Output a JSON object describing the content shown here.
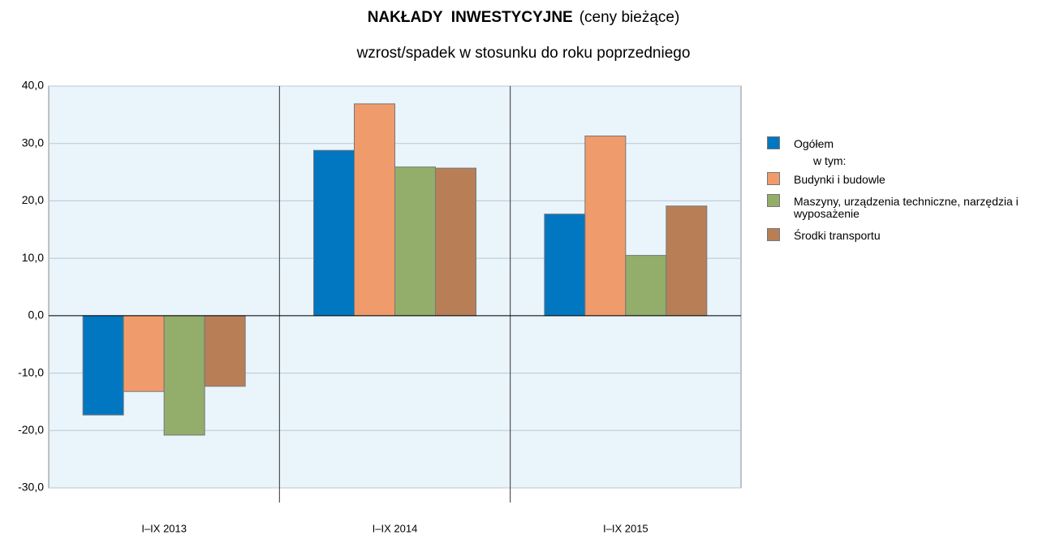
{
  "chart_data": {
    "type": "bar",
    "title": "NAKŁADY  INWESTYCYJNE",
    "title_note": "(ceny bieżące)",
    "subtitle": "wzrost/spadek w stosunku do roku poprzedniego",
    "categories": [
      "I–IX 2013",
      "I–IX 2014",
      "I–IX 2015"
    ],
    "series": [
      {
        "name": "Ogółem",
        "color": "#0077c0",
        "values": [
          -17.3,
          28.8,
          17.7
        ]
      },
      {
        "name": "Budynki i budowle",
        "color": "#f09b6b",
        "values": [
          -13.2,
          36.9,
          31.3
        ]
      },
      {
        "name": "Maszyny, urządzenia techniczne, narzędzia i wyposażenie",
        "color": "#93ad6a",
        "values": [
          -20.8,
          25.9,
          10.5
        ]
      },
      {
        "name": "Środki transportu",
        "color": "#b87f57",
        "values": [
          -12.3,
          25.7,
          19.1
        ]
      }
    ],
    "legend_note": "w tym:",
    "ylim": [
      -30,
      40
    ],
    "yticks": [
      {
        "value": -30,
        "label": "-30,0"
      },
      {
        "value": -20,
        "label": "-20,0"
      },
      {
        "value": -10,
        "label": "-10,0"
      },
      {
        "value": 0,
        "label": "0,0"
      },
      {
        "value": 10,
        "label": "10,0"
      },
      {
        "value": 20,
        "label": "20,0"
      },
      {
        "value": 30,
        "label": "30,0"
      },
      {
        "value": 40,
        "label": "40,0"
      }
    ],
    "grid": true,
    "legend": "right"
  }
}
